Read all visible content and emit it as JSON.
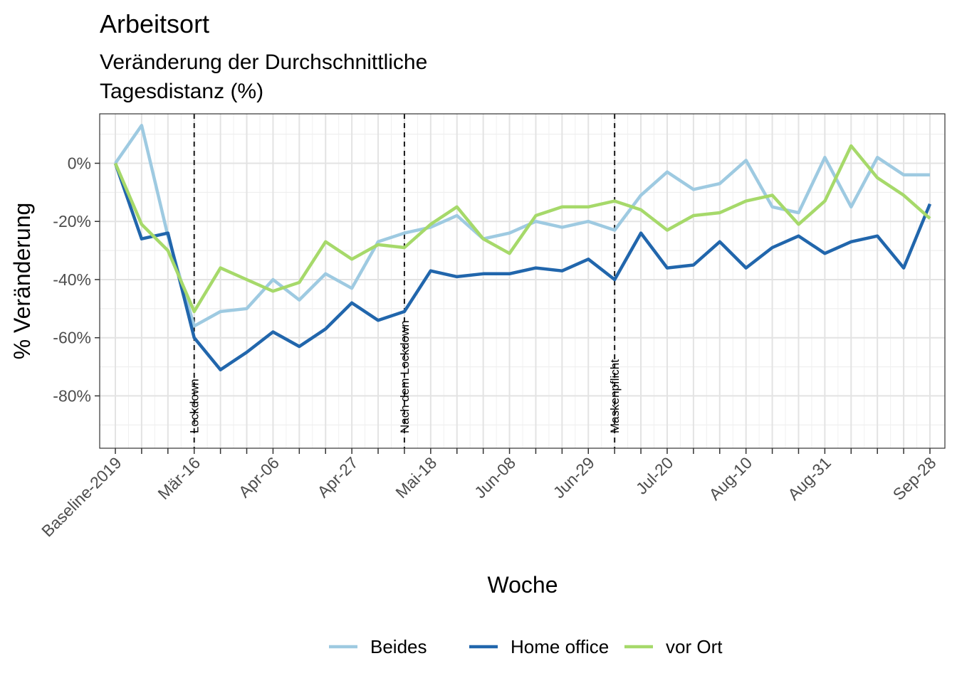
{
  "chart_data": {
    "type": "line",
    "title": "Arbeitsort",
    "subtitle_lines": [
      "Veränderung der Durchschnittliche",
      "Tagesdistanz (%)"
    ],
    "xlabel": "Woche",
    "ylabel": "% Veränderung",
    "ylim": [
      -98,
      17
    ],
    "y_ticks": [
      0,
      -20,
      -40,
      -60,
      -80
    ],
    "y_tick_labels": [
      "0%",
      "-20%",
      "-40%",
      "-60%",
      "-80%"
    ],
    "x_ticks": [
      0,
      3,
      6,
      9,
      12,
      15,
      18,
      21,
      24,
      27,
      30,
      31
    ],
    "x_tick_labels": [
      "Baseline-2019",
      "Mär-16",
      "Apr-06",
      "Apr-27",
      "Mai-18",
      "Jun-08",
      "Jun-29",
      "Jul-20",
      "Aug-10",
      "Aug-31",
      "Sep-28"
    ],
    "x_tick_label_positions": [
      0,
      3,
      6,
      9,
      12,
      15,
      18,
      21,
      24,
      27,
      31
    ],
    "x_count": 32,
    "grid": true,
    "legend_position": "bottom",
    "series": [
      {
        "name": "Beides",
        "color": "#9ecae1",
        "values": [
          0,
          13,
          -25,
          -56,
          -51,
          -50,
          -40,
          -47,
          -38,
          -43,
          -27,
          -24,
          -22,
          -18,
          -26,
          -24,
          -20,
          -22,
          -20,
          -23,
          -11,
          -3,
          -9,
          -7,
          1,
          -15,
          -17,
          2,
          -15,
          2,
          -4,
          -4
        ]
      },
      {
        "name": "Home office",
        "color": "#2166ac",
        "values": [
          0,
          -26,
          -24,
          -60,
          -71,
          -65,
          -58,
          -63,
          -57,
          -48,
          -54,
          -51,
          -37,
          -39,
          -38,
          -38,
          -36,
          -37,
          -33,
          -40,
          -24,
          -36,
          -35,
          -27,
          -36,
          -29,
          -25,
          -31,
          -27,
          -25,
          -36,
          -14
        ]
      },
      {
        "name": "vor Ort",
        "color": "#a6d96a",
        "values": [
          0,
          -21,
          -30,
          -51,
          -36,
          -40,
          -44,
          -41,
          -27,
          -33,
          -28,
          -29,
          -21,
          -15,
          -26,
          -31,
          -18,
          -15,
          -15,
          -13,
          -16,
          -23,
          -18,
          -17,
          -13,
          -11,
          -21,
          -13,
          6,
          -5,
          -11,
          -19
        ]
      }
    ],
    "annotations": [
      {
        "label": "Lockdown",
        "x": 3
      },
      {
        "label": "Nach dem Lockdown",
        "x": 11
      },
      {
        "label": "Maskenpflicht",
        "x": 19
      }
    ]
  }
}
